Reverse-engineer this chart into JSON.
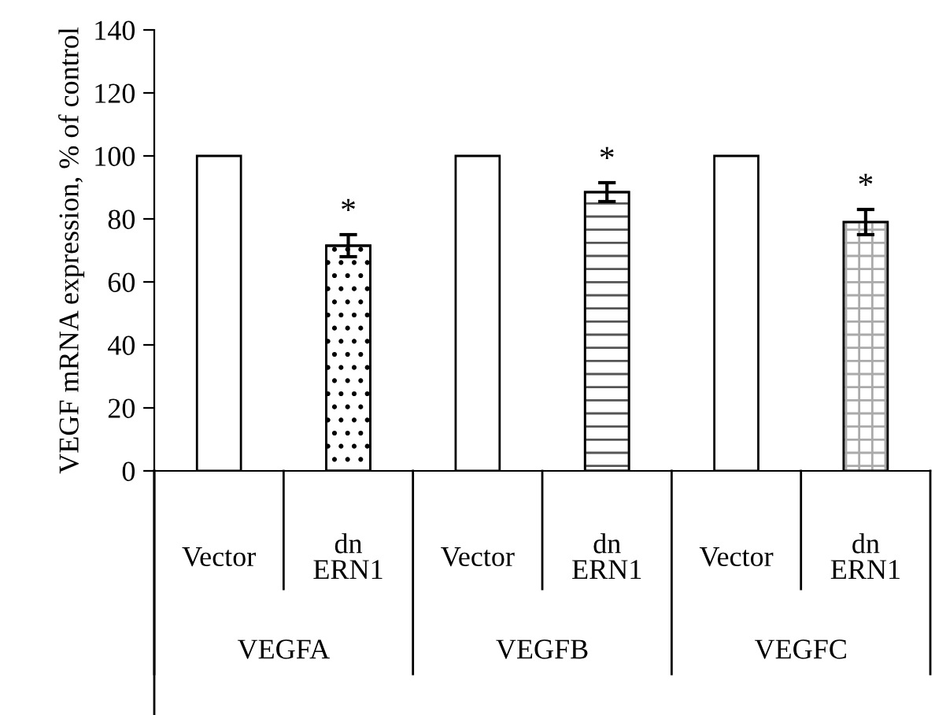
{
  "chart_data": {
    "type": "bar",
    "categories": [
      "Vector",
      "dn\nERN1",
      "Vector",
      "dn\nERN1",
      "Vector",
      "dn\nERN1"
    ],
    "values": [
      100,
      71.5,
      100,
      88.5,
      100,
      79
    ],
    "errors": [
      null,
      3.5,
      null,
      3,
      null,
      4
    ],
    "colors": [
      "#ffffff",
      "#000000",
      "#ffffff",
      "#555555",
      "#ffffff",
      "#aaaaaa"
    ],
    "ylabel": "VEGF mRNA expression, % of control",
    "ylim": [
      0,
      140
    ],
    "yticks": [
      0,
      20,
      40,
      60,
      80,
      100,
      120,
      140
    ],
    "annotations": [
      "*",
      "*",
      "*",
      "VEGFA",
      "VEGFB",
      "VEGFC"
    ],
    "grid": false,
    "legend": false
  }
}
